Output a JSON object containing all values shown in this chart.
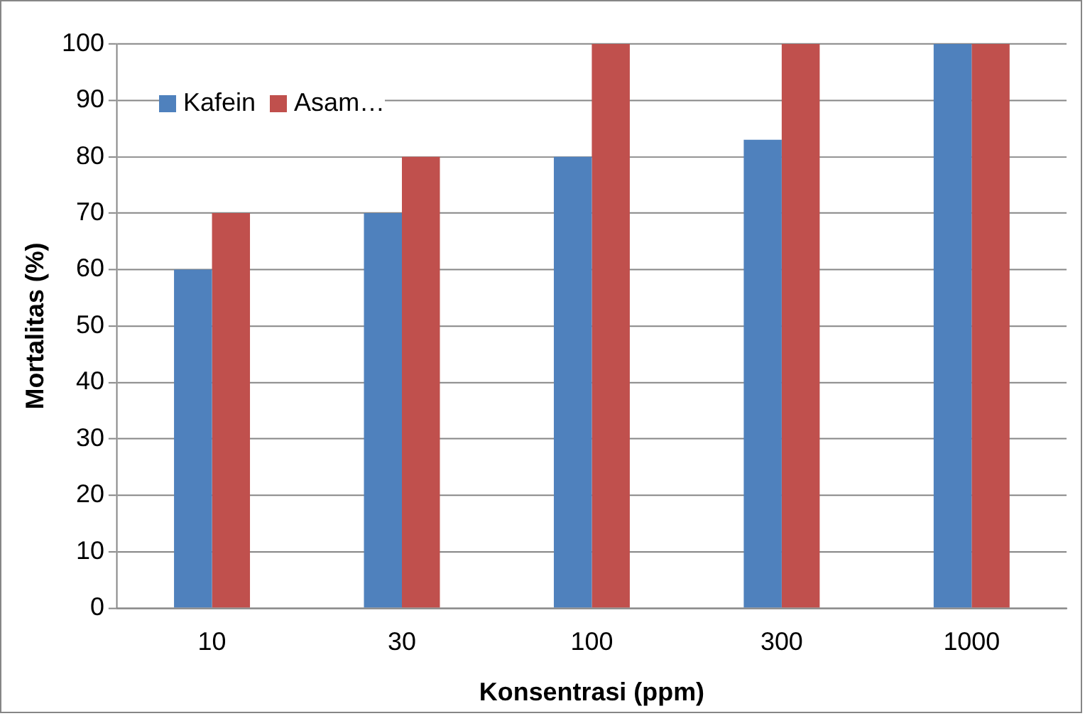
{
  "chart_data": {
    "type": "bar",
    "xlabel": "Konsentrasi (ppm)",
    "ylabel": "Mortalitas (%)",
    "categories": [
      "10",
      "30",
      "100",
      "300",
      "1000"
    ],
    "series": [
      {
        "name": "Kafein",
        "color": "#4f81bd",
        "values": [
          60,
          70,
          80,
          83,
          100
        ]
      },
      {
        "name": "Asam…",
        "color": "#c0504d",
        "values": [
          70,
          80,
          100,
          100,
          100
        ]
      }
    ],
    "ylim": [
      0,
      100
    ],
    "yticks": [
      0,
      10,
      20,
      30,
      40,
      50,
      60,
      70,
      80,
      90,
      100
    ],
    "grid": "y",
    "legend": "top left"
  }
}
